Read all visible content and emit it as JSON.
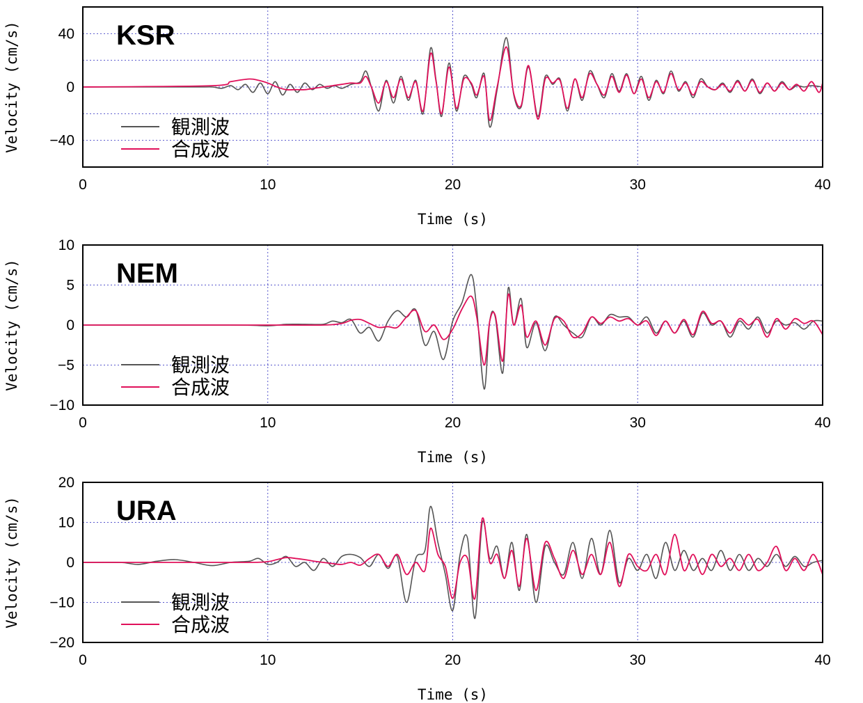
{
  "chart_data": [
    {
      "type": "line",
      "title": "KSR",
      "xlabel": "Time (s)",
      "ylabel": "Velocity (cm/s)",
      "xlim": [
        0,
        40
      ],
      "ylim": [
        -60,
        60
      ],
      "xticks": [
        "0",
        "10",
        "20",
        "30",
        "40"
      ],
      "yticks": [
        "40",
        "0",
        "−40"
      ],
      "ytick_values": [
        40,
        0,
        -40
      ],
      "legend": "lower-left",
      "series": [
        {
          "name": "観測波",
          "color": "#555555",
          "x": [
            0,
            6,
            7,
            7.5,
            8,
            8.4,
            8.8,
            9.2,
            9.6,
            10,
            10.4,
            10.8,
            11.2,
            11.6,
            12,
            12.4,
            12.8,
            13.2,
            13.6,
            14,
            14.5,
            15,
            15.3,
            15.6,
            16,
            16.4,
            16.8,
            17.2,
            17.6,
            18,
            18.4,
            18.8,
            19.1,
            19.4,
            19.8,
            20.2,
            20.6,
            21,
            21.3,
            21.7,
            22,
            22.4,
            22.9,
            23.3,
            23.7,
            24.1,
            24.6,
            25,
            25.4,
            25.8,
            26.2,
            26.6,
            27,
            27.4,
            27.8,
            28.2,
            28.6,
            29,
            29.4,
            29.8,
            30.2,
            30.6,
            31,
            31.4,
            31.8,
            32.2,
            32.6,
            33,
            33.4,
            33.8,
            34.2,
            34.6,
            35,
            35.4,
            35.8,
            36.2,
            36.6,
            37,
            37.4,
            37.8,
            38.2,
            38.6,
            39,
            39.4,
            40
          ],
          "y": [
            0,
            0,
            0,
            -1,
            1,
            -2,
            2,
            -4,
            3,
            -5,
            4,
            -6,
            2,
            -4,
            3,
            -2,
            2,
            -1,
            1,
            -1,
            2,
            4,
            12,
            0,
            -18,
            5,
            -12,
            8,
            -10,
            5,
            -20,
            29,
            5,
            -22,
            18,
            -18,
            8,
            2,
            -8,
            10,
            -30,
            -2,
            37,
            -6,
            -15,
            15,
            -22,
            8,
            2,
            6,
            -18,
            6,
            -10,
            12,
            2,
            -8,
            10,
            -3,
            10,
            -5,
            8,
            -10,
            5,
            -5,
            12,
            -3,
            4,
            -8,
            6,
            0,
            -2,
            3,
            -4,
            5,
            -3,
            6,
            -5,
            3,
            -3,
            4,
            -2,
            1,
            0,
            1,
            0
          ]
        },
        {
          "name": "合成波",
          "color": "#e0105a",
          "x": [
            0,
            7,
            8,
            9,
            9.5,
            10,
            10.5,
            11,
            11.5,
            12,
            12.5,
            13,
            13.5,
            14,
            14.5,
            15,
            15.3,
            15.6,
            16,
            16.4,
            16.8,
            17.2,
            17.6,
            18,
            18.4,
            18.8,
            19.1,
            19.4,
            19.8,
            20.2,
            20.6,
            21,
            21.3,
            21.7,
            22,
            22.4,
            22.9,
            23.3,
            23.7,
            24.1,
            24.6,
            25,
            25.4,
            25.8,
            26.2,
            26.6,
            27,
            27.4,
            27.8,
            28.2,
            28.6,
            29,
            29.4,
            29.8,
            30.2,
            30.6,
            31,
            31.4,
            31.8,
            32.2,
            32.6,
            33,
            33.4,
            33.8,
            34.2,
            34.6,
            35,
            35.4,
            35.8,
            36.2,
            36.6,
            37,
            37.4,
            37.8,
            38.2,
            38.6,
            39,
            39.4,
            39.8,
            40
          ],
          "y": [
            0,
            1,
            4,
            6,
            5,
            3,
            0,
            -2,
            -2,
            -2,
            -1,
            0,
            1,
            2,
            3,
            3,
            8,
            0,
            -12,
            4,
            -8,
            6,
            -8,
            4,
            -18,
            25,
            4,
            -20,
            15,
            -16,
            6,
            3,
            -6,
            8,
            -25,
            0,
            30,
            -5,
            -14,
            16,
            -24,
            6,
            3,
            5,
            -16,
            6,
            -8,
            10,
            2,
            -6,
            8,
            -4,
            9,
            -5,
            6,
            -8,
            4,
            -4,
            10,
            -2,
            3,
            -6,
            4,
            0,
            -2,
            2,
            -3,
            4,
            -3,
            5,
            -4,
            3,
            -3,
            3,
            -2,
            2,
            -3,
            4,
            -4,
            3
          ]
        }
      ]
    },
    {
      "type": "line",
      "title": "NEM",
      "xlabel": "Time (s)",
      "ylabel": "Velocity (cm/s)",
      "xlim": [
        0,
        40
      ],
      "ylim": [
        -10,
        10
      ],
      "xticks": [
        "0",
        "10",
        "20",
        "30",
        "40"
      ],
      "yticks": [
        "10",
        "5",
        "0",
        "−5",
        "−10"
      ],
      "ytick_values": [
        10,
        5,
        0,
        -5,
        -10
      ],
      "legend": "lower-left",
      "series": [
        {
          "name": "観測波",
          "color": "#555555",
          "x": [
            0,
            8,
            10,
            11,
            12,
            13,
            13.5,
            14,
            14.5,
            15,
            15.5,
            16,
            16.5,
            17,
            17.5,
            18,
            18.5,
            19,
            19.5,
            20,
            20.5,
            21,
            21.3,
            21.7,
            22,
            22.3,
            22.7,
            23,
            23.3,
            23.7,
            24,
            24.5,
            25,
            25.5,
            26,
            26.5,
            27,
            27.5,
            28,
            28.5,
            29,
            29.5,
            30,
            30.5,
            31,
            31.5,
            32,
            32.5,
            33,
            33.5,
            34,
            34.5,
            35,
            35.5,
            36,
            36.5,
            37,
            37.5,
            38,
            38.5,
            39,
            39.5,
            40
          ],
          "y": [
            0,
            0,
            -0.1,
            0.1,
            0.1,
            0.1,
            0.5,
            0.3,
            0.7,
            -1,
            -0.3,
            -2,
            0.5,
            1.8,
            1,
            1.9,
            -2.5,
            -0.8,
            -4.3,
            0.5,
            2.8,
            6.3,
            2,
            -8,
            0.5,
            1,
            -6,
            4.6,
            0,
            3.3,
            -2.8,
            0.3,
            -3.2,
            1,
            0,
            -1,
            -1.5,
            1,
            0,
            1.3,
            1,
            1,
            0,
            1,
            -1,
            0.5,
            -1,
            0.5,
            -1.5,
            1.5,
            0,
            0.5,
            -1.5,
            0.5,
            -0.5,
            1,
            -1,
            0.5,
            0,
            0.3,
            -0.5,
            0.5,
            0.5
          ]
        },
        {
          "name": "合成波",
          "color": "#e0105a",
          "x": [
            0,
            10,
            13,
            14,
            14.5,
            15,
            15.5,
            16,
            16.5,
            17,
            17.5,
            18,
            18.5,
            19,
            19.5,
            20,
            20.5,
            21,
            21.3,
            21.7,
            22,
            22.3,
            22.7,
            23,
            23.3,
            23.7,
            24,
            24.5,
            25,
            25.5,
            26,
            26.5,
            27,
            27.5,
            28,
            28.5,
            29,
            29.5,
            30,
            30.5,
            31,
            31.5,
            32,
            32.5,
            33,
            33.5,
            34,
            34.5,
            35,
            35.5,
            36,
            36.5,
            37,
            37.5,
            38,
            38.5,
            39,
            39.5,
            40
          ],
          "y": [
            0,
            0,
            0,
            0.2,
            0.6,
            0.7,
            0.2,
            -0.3,
            -0.2,
            -0.3,
            1,
            1.8,
            -0.8,
            0,
            -1.8,
            -0.5,
            2,
            3.6,
            1,
            -5,
            0.5,
            1.2,
            -4.5,
            3.8,
            0,
            2.5,
            -1.5,
            0.5,
            -2.5,
            0.8,
            0.5,
            -1.5,
            -1,
            1,
            0.2,
            1,
            0.5,
            0.8,
            0,
            0.5,
            -1.3,
            0.5,
            -1,
            0.7,
            -1.2,
            1.7,
            0.2,
            0.5,
            -1,
            0.8,
            0,
            0.7,
            -1.5,
            0.8,
            -0.5,
            0.8,
            0.2,
            0.5,
            -1.2
          ]
        }
      ]
    },
    {
      "type": "line",
      "title": "URA",
      "xlabel": "Time (s)",
      "ylabel": "Velocity (cm/s)",
      "xlim": [
        0,
        40
      ],
      "ylim": [
        -20,
        20
      ],
      "xticks": [
        "0",
        "10",
        "20",
        "30",
        "40"
      ],
      "yticks": [
        "20",
        "10",
        "0",
        "−10",
        "−20"
      ],
      "ytick_values": [
        20,
        10,
        0,
        -10,
        -20
      ],
      "legend": "lower-left",
      "series": [
        {
          "name": "観測波",
          "color": "#555555",
          "x": [
            0,
            2,
            3,
            4,
            5,
            6,
            7,
            8,
            9,
            9.5,
            10,
            10.5,
            11,
            11.5,
            12,
            12.5,
            13,
            13.5,
            14,
            14.5,
            15,
            15.5,
            16,
            16.5,
            17,
            17.5,
            18,
            18.5,
            18.8,
            19.2,
            19.6,
            20,
            20.4,
            20.8,
            21.2,
            21.6,
            22,
            22.4,
            22.8,
            23.2,
            23.6,
            24,
            24.5,
            25,
            25.5,
            26,
            26.5,
            27,
            27.5,
            28,
            28.5,
            29,
            29.5,
            30,
            30.5,
            31,
            31.5,
            32,
            32.5,
            33,
            33.5,
            34,
            34.5,
            35,
            35.5,
            36,
            36.5,
            37,
            37.5,
            38,
            38.5,
            39,
            39.5,
            40
          ],
          "y": [
            0,
            0,
            -0.5,
            0.3,
            0.7,
            0,
            -0.8,
            0,
            0.3,
            1,
            -0.5,
            0,
            1.5,
            -1,
            0,
            -2,
            1,
            -1,
            1.5,
            2,
            1.2,
            -1,
            2,
            -1.5,
            1.5,
            -10,
            1,
            3,
            14,
            5,
            -3,
            -12,
            2,
            6,
            -14,
            10,
            1,
            4,
            -4,
            5,
            -7,
            7,
            -10,
            4,
            0,
            -3,
            5,
            -4,
            6,
            -3,
            8,
            -5,
            1,
            -2,
            2,
            -4,
            5,
            -2,
            3,
            -2,
            1,
            -2,
            3,
            -2,
            2,
            -2,
            1,
            -1,
            2,
            -1,
            1.5,
            -1,
            0,
            0.5
          ]
        },
        {
          "name": "合成波",
          "color": "#e0105a",
          "x": [
            0,
            5,
            9,
            10,
            10.5,
            11,
            11.5,
            12,
            12.5,
            13,
            13.5,
            14,
            14.5,
            15,
            15.5,
            16,
            16.5,
            17,
            17.5,
            18,
            18.5,
            18.8,
            19.2,
            19.6,
            20,
            20.4,
            20.8,
            21.2,
            21.6,
            22,
            22.4,
            22.8,
            23.2,
            23.6,
            24,
            24.5,
            25,
            25.5,
            26,
            26.5,
            27,
            27.5,
            28,
            28.5,
            29,
            29.5,
            30,
            30.5,
            31,
            31.5,
            32,
            32.5,
            33,
            33.5,
            34,
            34.5,
            35,
            35.5,
            36,
            36.5,
            37,
            37.5,
            38,
            38.5,
            39,
            39.5,
            40
          ],
          "y": [
            0,
            0,
            0,
            0.2,
            0.7,
            1.2,
            1,
            0.7,
            0.3,
            0,
            -0.3,
            -0.5,
            0,
            -0.7,
            1,
            2,
            -1,
            2,
            -3,
            0,
            -2,
            8.5,
            2,
            -1,
            -9,
            0,
            1,
            -9,
            11,
            0,
            2,
            -4,
            3,
            -6,
            6,
            -7,
            5,
            1,
            -4,
            3,
            -3,
            2,
            -3,
            5,
            -6,
            2,
            -1,
            -2,
            2,
            -3,
            7,
            -2,
            2,
            -3,
            2,
            -1,
            1,
            -2,
            2,
            -2,
            0,
            4,
            -2,
            1,
            -2,
            2,
            -3
          ]
        }
      ]
    }
  ]
}
